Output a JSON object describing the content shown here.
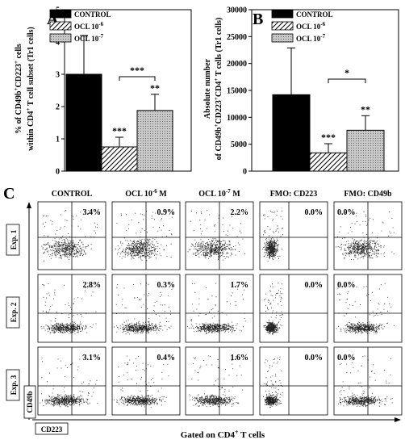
{
  "chart_data": [
    {
      "panel_label": "A",
      "type": "bar",
      "ylabel_line1": "% of CD49b",
      "ylabel_line2": "within CD4",
      "ylabel_sup1": "+",
      "ylabel_mid1": "CD223",
      "ylabel_sup2": "+",
      "ylabel_end1": " cells",
      "ylabel_end2": " T cell subset (Tr1 cells)",
      "ylim": [
        0,
        5
      ],
      "yticks": [
        "0",
        "1",
        "2",
        "3",
        "4",
        "5"
      ],
      "categories": [
        "CONTROL",
        "OCL 10-6",
        "OCL 10-7"
      ],
      "values": [
        3.0,
        0.75,
        1.88
      ],
      "errors": [
        1.2,
        0.3,
        0.5
      ],
      "bar_labels": [
        "",
        "***",
        "**"
      ],
      "bracket_label": "***",
      "legend": [
        {
          "text": "CONTROL",
          "sup": ""
        },
        {
          "text": "OCL 10",
          "sup": "-6"
        },
        {
          "text": "OCL 10",
          "sup": "-7"
        }
      ]
    },
    {
      "panel_label": "B",
      "type": "bar",
      "ylabel_line1": "Absolute number",
      "ylabel_line2": "of CD49b",
      "ylabel_sup_a": "+",
      "ylabel_mid": "CD223",
      "ylabel_sup_b": "+",
      "ylabel_mid2": "CD4",
      "ylabel_sup_c": "+",
      "ylabel_end": " T cells (Tr1 cells)",
      "ylim": [
        0,
        30000
      ],
      "yticks": [
        "0",
        "5000",
        "10000",
        "15000",
        "20000",
        "25000",
        "30000"
      ],
      "categories": [
        "CONTROL",
        "OCL 10-6",
        "OCL 10-7"
      ],
      "values": [
        14200,
        3400,
        7600
      ],
      "errors": [
        8700,
        1700,
        2700
      ],
      "bar_labels": [
        "",
        "***",
        "**"
      ],
      "bracket_label": "*",
      "legend": [
        {
          "text": "CONTROL",
          "sup": ""
        },
        {
          "text": "OCL 10",
          "sup": "-6"
        },
        {
          "text": "OCL 10",
          "sup": "-7"
        }
      ]
    },
    {
      "panel_label": "C",
      "type": "scatter",
      "columns": [
        {
          "text": "CONTROL",
          "sup": "",
          "tail": ""
        },
        {
          "text": "OCL 10",
          "sup": "-6",
          "tail": " M"
        },
        {
          "text": "OCL 10",
          "sup": "-7",
          "tail": " M"
        },
        {
          "text": "FMO: CD223",
          "sup": "",
          "tail": ""
        },
        {
          "text": "FMO: CD49b",
          "sup": "",
          "tail": ""
        }
      ],
      "rows": [
        "Exp. 1",
        "Exp. 2",
        "Exp. 3"
      ],
      "percentages": [
        [
          "3.4%",
          "0.9%",
          "2.2%",
          "0.0%",
          "0.0%"
        ],
        [
          "2.8%",
          "0.3%",
          "1.7%",
          "0.0%",
          "0.0%"
        ],
        [
          "3.1%",
          "0.4%",
          "1.6%",
          "0.0%",
          "0.0%"
        ]
      ],
      "y_axis_label": "CD49b",
      "x_axis_label": "CD223",
      "gate_label": "Gated on CD4",
      "gate_sup": "+",
      "gate_tail": " T cells"
    }
  ]
}
